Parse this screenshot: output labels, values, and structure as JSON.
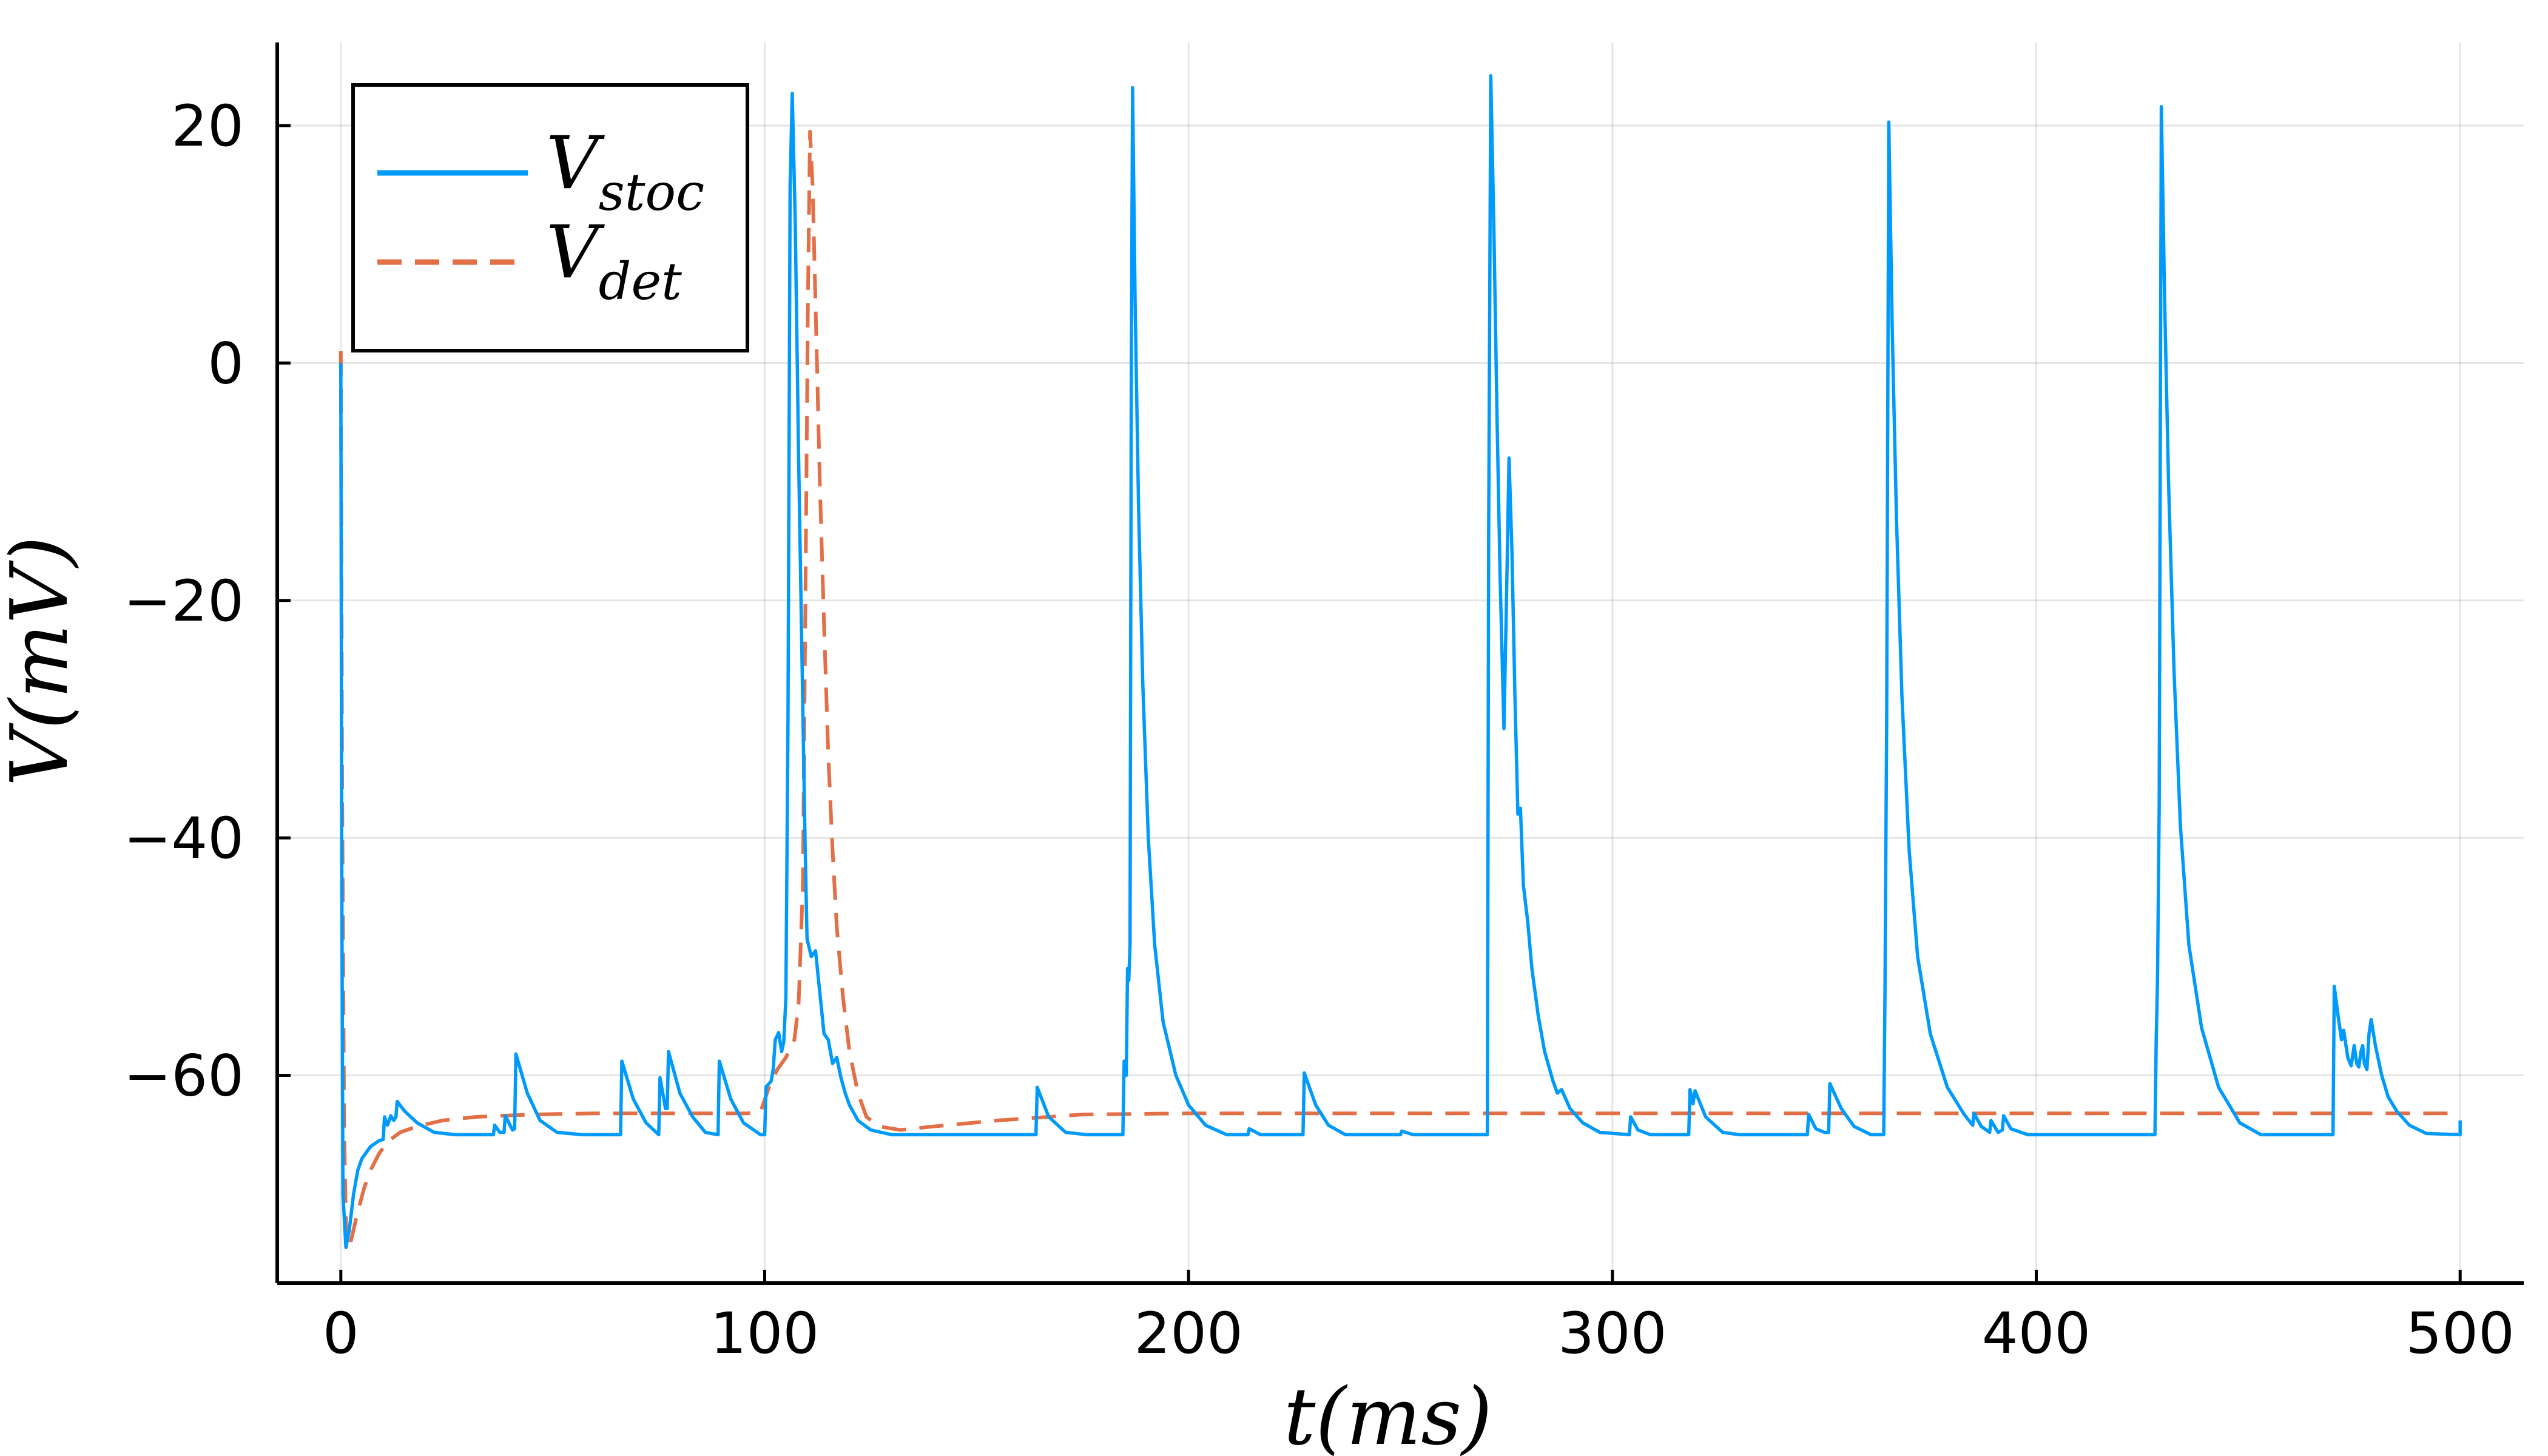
{
  "chart_data": {
    "type": "line",
    "title": "",
    "xlabel": "t(ms)",
    "ylabel": "V(mV)",
    "xlim": [
      -15,
      515
    ],
    "ylim": [
      -77.5,
      27
    ],
    "x_ticks": [
      0,
      100,
      200,
      300,
      400,
      500
    ],
    "y_ticks": [
      20,
      0,
      -20,
      -40,
      -60
    ],
    "y_tick_labels": [
      "20",
      "0",
      "−20",
      "−40",
      "−60"
    ],
    "grid": true,
    "legend_position": "top-left",
    "series": [
      {
        "name": "V",
        "name_subscript": "stoc",
        "color": "#009AFA",
        "dash": "solid",
        "points": [
          [
            0,
            0
          ],
          [
            0.2,
            -40
          ],
          [
            0.5,
            -70
          ],
          [
            1.2,
            -74.5
          ],
          [
            2,
            -73
          ],
          [
            3,
            -70
          ],
          [
            4,
            -68
          ],
          [
            5,
            -67
          ],
          [
            7,
            -66
          ],
          [
            9,
            -65.5
          ],
          [
            10,
            -65.4
          ],
          [
            10.3,
            -63.5
          ],
          [
            11,
            -64.2
          ],
          [
            11.8,
            -63.4
          ],
          [
            12.5,
            -63.8
          ],
          [
            13,
            -63.5
          ],
          [
            13.3,
            -62.2
          ],
          [
            15,
            -63
          ],
          [
            18,
            -64
          ],
          [
            22,
            -64.8
          ],
          [
            27,
            -65
          ],
          [
            36,
            -65
          ],
          [
            36.3,
            -64.2
          ],
          [
            37.5,
            -64.8
          ],
          [
            38.5,
            -64.8
          ],
          [
            38.8,
            -63.4
          ],
          [
            40.5,
            -64.6
          ],
          [
            41,
            -64.5
          ],
          [
            41.3,
            -58.2
          ],
          [
            44,
            -61.5
          ],
          [
            47,
            -63.8
          ],
          [
            51,
            -64.8
          ],
          [
            57,
            -65
          ],
          [
            66,
            -65
          ],
          [
            66.3,
            -58.8
          ],
          [
            69,
            -62
          ],
          [
            72,
            -64
          ],
          [
            75,
            -65
          ],
          [
            75.3,
            -60.2
          ],
          [
            76.6,
            -62.8
          ],
          [
            77,
            -62.8
          ],
          [
            77.3,
            -58
          ],
          [
            80,
            -61.5
          ],
          [
            83,
            -63.5
          ],
          [
            86,
            -64.8
          ],
          [
            89,
            -65
          ],
          [
            89.3,
            -58.8
          ],
          [
            92,
            -62
          ],
          [
            95,
            -64
          ],
          [
            99,
            -65
          ],
          [
            100,
            -65
          ],
          [
            100.3,
            -61
          ],
          [
            101.5,
            -60.5
          ],
          [
            102,
            -59.5
          ],
          [
            102.5,
            -57
          ],
          [
            103.3,
            -56.4
          ],
          [
            104,
            -58
          ],
          [
            104.5,
            -57.2
          ],
          [
            105,
            -53.5
          ],
          [
            105.5,
            -30
          ],
          [
            106,
            15
          ],
          [
            106.5,
            22.7
          ],
          [
            107.2,
            12
          ],
          [
            108,
            -8
          ],
          [
            108.8,
            -25
          ],
          [
            109.5,
            -40
          ],
          [
            110,
            -48.5
          ],
          [
            111,
            -50
          ],
          [
            112,
            -49.5
          ],
          [
            113,
            -53
          ],
          [
            114,
            -56.5
          ],
          [
            115,
            -57
          ],
          [
            116,
            -59
          ],
          [
            117,
            -58.5
          ],
          [
            118,
            -60.2
          ],
          [
            119,
            -61.5
          ],
          [
            120,
            -62.5
          ],
          [
            122,
            -63.8
          ],
          [
            125,
            -64.6
          ],
          [
            130,
            -65
          ],
          [
            164,
            -65
          ],
          [
            164.3,
            -61
          ],
          [
            167,
            -63.5
          ],
          [
            171,
            -64.8
          ],
          [
            176,
            -65
          ],
          [
            184.5,
            -65
          ],
          [
            184.8,
            -58.8
          ],
          [
            185.3,
            -60
          ],
          [
            185.6,
            -51
          ],
          [
            185.9,
            -52
          ],
          [
            186.2,
            -49
          ],
          [
            186.5,
            0
          ],
          [
            186.8,
            23.2
          ],
          [
            187.4,
            5
          ],
          [
            188.2,
            -12
          ],
          [
            189.2,
            -27
          ],
          [
            190.5,
            -40
          ],
          [
            192,
            -49
          ],
          [
            194,
            -55.5
          ],
          [
            197,
            -60
          ],
          [
            200,
            -62.5
          ],
          [
            204,
            -64.2
          ],
          [
            209,
            -65
          ],
          [
            214,
            -65
          ],
          [
            214.3,
            -64.5
          ],
          [
            217,
            -65
          ],
          [
            227,
            -65
          ],
          [
            227.3,
            -59.8
          ],
          [
            230,
            -62.5
          ],
          [
            233,
            -64.2
          ],
          [
            237,
            -65
          ],
          [
            250,
            -65
          ],
          [
            250.3,
            -64.7
          ],
          [
            253,
            -65
          ],
          [
            270.5,
            -65
          ],
          [
            270.8,
            -15
          ],
          [
            271.3,
            24.2
          ],
          [
            272,
            12
          ],
          [
            272.8,
            -5
          ],
          [
            273.5,
            -18
          ],
          [
            274.4,
            -30.8
          ],
          [
            275,
            -20
          ],
          [
            275.6,
            -8
          ],
          [
            276.3,
            -16
          ],
          [
            277,
            -28
          ],
          [
            277.7,
            -38
          ],
          [
            278.3,
            -37.5
          ],
          [
            279,
            -44
          ],
          [
            280,
            -47
          ],
          [
            281,
            -51
          ],
          [
            282.5,
            -55
          ],
          [
            284,
            -58
          ],
          [
            286,
            -60.5
          ],
          [
            287,
            -61.5
          ],
          [
            288,
            -61.2
          ],
          [
            290,
            -62.8
          ],
          [
            293,
            -64
          ],
          [
            297,
            -64.8
          ],
          [
            304,
            -65
          ],
          [
            304.3,
            -63.5
          ],
          [
            306,
            -64.6
          ],
          [
            309,
            -65
          ],
          [
            318,
            -65
          ],
          [
            318.3,
            -61.2
          ],
          [
            319,
            -62.4
          ],
          [
            319.5,
            -61.3
          ],
          [
            322,
            -63.5
          ],
          [
            326,
            -64.8
          ],
          [
            330,
            -65
          ],
          [
            346,
            -65
          ],
          [
            346.3,
            -63.3
          ],
          [
            348,
            -64.5
          ],
          [
            350,
            -64.8
          ],
          [
            351,
            -64.8
          ],
          [
            351.3,
            -60.7
          ],
          [
            354,
            -62.8
          ],
          [
            357,
            -64.3
          ],
          [
            361,
            -65
          ],
          [
            364,
            -65
          ],
          [
            364.3,
            -53
          ],
          [
            364.7,
            -30
          ],
          [
            365.2,
            20.3
          ],
          [
            366,
            3
          ],
          [
            367,
            -13
          ],
          [
            368.3,
            -28
          ],
          [
            370,
            -41
          ],
          [
            372,
            -50
          ],
          [
            375,
            -56.5
          ],
          [
            379,
            -61
          ],
          [
            383,
            -63.3
          ],
          [
            385,
            -64.2
          ],
          [
            385.3,
            -63.2
          ],
          [
            387,
            -64.3
          ],
          [
            389,
            -64.8
          ],
          [
            389.3,
            -63.8
          ],
          [
            391,
            -64.8
          ],
          [
            392,
            -64.6
          ],
          [
            392.3,
            -63.4
          ],
          [
            394,
            -64.5
          ],
          [
            398,
            -65
          ],
          [
            428,
            -65
          ],
          [
            428.3,
            -57
          ],
          [
            428.6,
            -52
          ],
          [
            429,
            -37.5
          ],
          [
            429.5,
            21.6
          ],
          [
            430.3,
            5
          ],
          [
            431.2,
            -10
          ],
          [
            432.5,
            -26
          ],
          [
            434,
            -39
          ],
          [
            436,
            -49
          ],
          [
            439,
            -56
          ],
          [
            443,
            -61
          ],
          [
            448,
            -64
          ],
          [
            453,
            -65
          ],
          [
            470,
            -65
          ],
          [
            470.3,
            -52.5
          ],
          [
            471.2,
            -55
          ],
          [
            472,
            -57
          ],
          [
            472.5,
            -56.2
          ],
          [
            473.5,
            -58.5
          ],
          [
            474.3,
            -59.2
          ],
          [
            475,
            -57.5
          ],
          [
            475.6,
            -59
          ],
          [
            476.1,
            -59.3
          ],
          [
            476.6,
            -58
          ],
          [
            477,
            -57.5
          ],
          [
            477.4,
            -59
          ],
          [
            478,
            -59.5
          ],
          [
            478.5,
            -56.5
          ],
          [
            479,
            -55.3
          ],
          [
            480,
            -57.5
          ],
          [
            481.5,
            -60
          ],
          [
            483,
            -61.8
          ],
          [
            485,
            -63
          ],
          [
            488,
            -64.2
          ],
          [
            492,
            -64.9
          ],
          [
            500,
            -65
          ],
          [
            500,
            -63.8
          ]
        ]
      },
      {
        "name": "V",
        "name_subscript": "det",
        "color": "#E26F46",
        "dash": "dashed",
        "points": [
          [
            0,
            1
          ],
          [
            0.3,
            -35
          ],
          [
            0.8,
            -65
          ],
          [
            1.3,
            -74
          ],
          [
            2,
            -74.5
          ],
          [
            3,
            -73
          ],
          [
            4,
            -71.5
          ],
          [
            5.5,
            -69.5
          ],
          [
            7,
            -68
          ],
          [
            9,
            -66.6
          ],
          [
            11,
            -65.6
          ],
          [
            14,
            -64.8
          ],
          [
            18,
            -64.3
          ],
          [
            24,
            -63.8
          ],
          [
            32,
            -63.5
          ],
          [
            45,
            -63.3
          ],
          [
            60,
            -63.2
          ],
          [
            80,
            -63.2
          ],
          [
            96,
            -63.2
          ],
          [
            99,
            -63.1
          ],
          [
            101,
            -61
          ],
          [
            103,
            -59.5
          ],
          [
            105,
            -58.5
          ],
          [
            107,
            -57
          ],
          [
            108,
            -54
          ],
          [
            109,
            -44
          ],
          [
            109.6,
            -20
          ],
          [
            110.2,
            5
          ],
          [
            110.7,
            19.5
          ],
          [
            111.3,
            15
          ],
          [
            112.2,
            2
          ],
          [
            113,
            -10
          ],
          [
            114,
            -22
          ],
          [
            115,
            -33
          ],
          [
            116,
            -41
          ],
          [
            117,
            -47.5
          ],
          [
            118.5,
            -53.5
          ],
          [
            120,
            -58
          ],
          [
            122,
            -61.5
          ],
          [
            124,
            -63.5
          ],
          [
            127,
            -64.3
          ],
          [
            132,
            -64.6
          ],
          [
            140,
            -64.3
          ],
          [
            155,
            -63.8
          ],
          [
            175,
            -63.3
          ],
          [
            200,
            -63.2
          ],
          [
            300,
            -63.2
          ],
          [
            400,
            -63.2
          ],
          [
            500,
            -63.2
          ]
        ]
      }
    ]
  }
}
